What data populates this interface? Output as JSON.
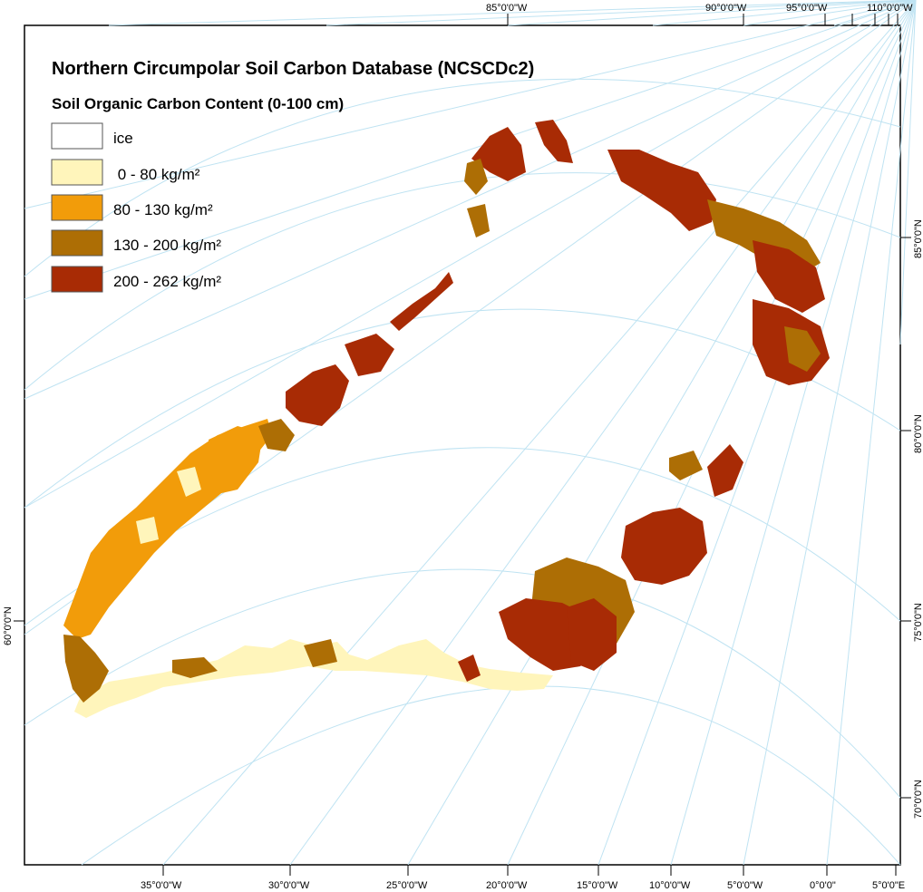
{
  "map": {
    "title": "Northern Circumpolar Soil Carbon Database (NCSCDc2)",
    "subtitle": "Soil Organic Carbon Content (0-100 cm)"
  },
  "legend": [
    {
      "label": "ice",
      "color": "#ffffff"
    },
    {
      "label": " 0 - 80 kg/m²",
      "color": "#fff5bb"
    },
    {
      "label": "80 - 130 kg/m²",
      "color": "#f29c0a"
    },
    {
      "label": "130 - 200 kg/m²",
      "color": "#ad6e05"
    },
    {
      "label": "200 - 262 kg/m²",
      "color": "#a82b05"
    }
  ],
  "top_ticks": [
    "85°0'0\"W",
    "90°0'0\"W",
    "95°0'0\"W",
    "110°0'0\"W"
  ],
  "bottom_ticks": [
    "35°0'0\"W",
    "30°0'0\"W",
    "25°0'0\"W",
    "20°0'0\"W",
    "15°0'0\"W",
    "10°0'0\"W",
    "5°0'0\"W",
    "0°0'0\"",
    "5°0'0\"E"
  ],
  "left_ticks": [
    "60°0'0\"N"
  ],
  "right_ticks": [
    "85°0'0\"N",
    "80°0'0\"N",
    "75°0'0\"N",
    "70°0'0\"N"
  ]
}
